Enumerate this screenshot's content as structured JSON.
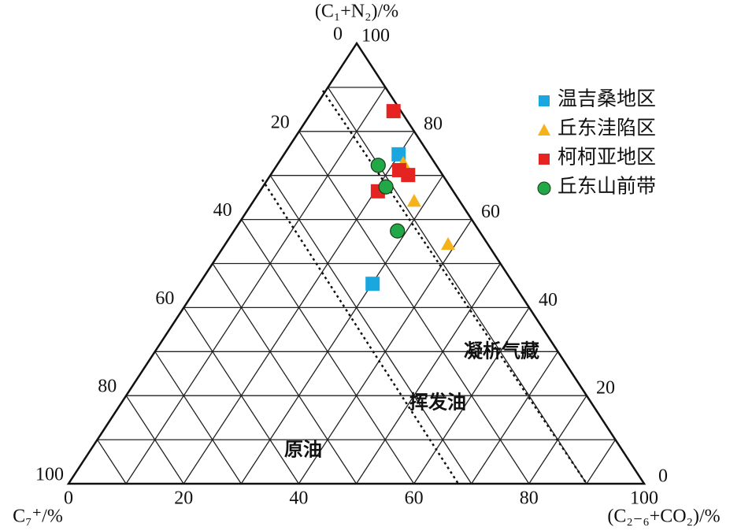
{
  "chart_data": {
    "type": "ternary",
    "top_axis": {
      "label": "(C₁+N₂)/%",
      "lim": [
        0,
        100
      ],
      "ticks": [
        0,
        20,
        40,
        60,
        80,
        100
      ]
    },
    "left_axis": {
      "label": "C₇⁺/%",
      "lim": [
        0,
        100
      ],
      "ticks": [
        0,
        20,
        40,
        60,
        80,
        100
      ]
    },
    "bottom_axis": {
      "label": "(C₂₋₆+CO₂)/%",
      "lim": [
        0,
        100
      ],
      "ticks": [
        0,
        20,
        40,
        60,
        80,
        100
      ]
    },
    "annotations": [
      "凝析气藏",
      "挥发油",
      "原油"
    ],
    "series": [
      {
        "name": "温吉桑地区",
        "color": "#1aa7e0",
        "marker": "square",
        "c1_n2": [
          74.8,
          45.4
        ],
        "c7_plus": [
          5.3,
          24.5
        ],
        "c2_6_co2": [
          19.9,
          30.1
        ]
      },
      {
        "name": "丘东洼陷区",
        "color": "#f6b21a",
        "marker": "triangle",
        "c1_n2": [
          72.8,
          64.2,
          54.4
        ],
        "c7_plus": [
          5.5,
          7.9,
          6.9
        ],
        "c2_6_co2": [
          21.7,
          27.9,
          38.7
        ]
      },
      {
        "name": "柯柯亚地区",
        "color": "#e52421",
        "marker": "square",
        "c1_n2": [
          84.6,
          71.2,
          70.1,
          66.4
        ],
        "c7_plus": [
          1.3,
          7.0,
          6.0,
          13.1
        ],
        "c2_6_co2": [
          14.1,
          21.8,
          23.9,
          20.5
        ]
      },
      {
        "name": "丘东山前带",
        "color": "#22a846",
        "marker": "circle",
        "c1_n2": [
          72.3,
          67.4,
          57.4
        ],
        "c7_plus": [
          10.1,
          11.2,
          14.2
        ],
        "c2_6_co2": [
          17.6,
          21.4,
          28.4
        ]
      }
    ]
  }
}
